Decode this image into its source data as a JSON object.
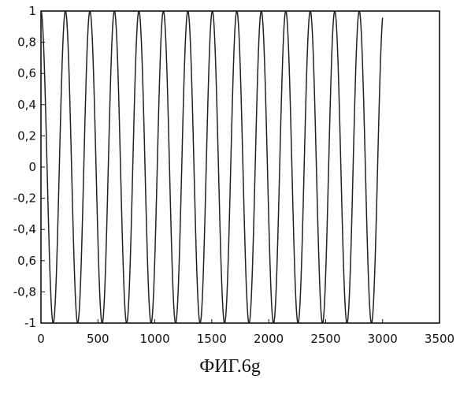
{
  "caption": "ФИГ.6g",
  "chart_data": {
    "type": "line",
    "title": "",
    "xlabel": "",
    "ylabel": "",
    "xlim": [
      0,
      3500
    ],
    "ylim": [
      -1,
      1
    ],
    "grid": false,
    "legend": "none",
    "line_color": "#222222",
    "signal": {
      "waveform": "cosine",
      "amplitude": 1,
      "period": 215,
      "x_start": 0,
      "x_end": 3000,
      "cycles": 14
    },
    "x_ticks": [
      {
        "value": 0,
        "label": "0"
      },
      {
        "value": 500,
        "label": "500"
      },
      {
        "value": 1000,
        "label": "1000"
      },
      {
        "value": 1500,
        "label": "1500"
      },
      {
        "value": 2000,
        "label": "2000"
      },
      {
        "value": 2500,
        "label": "2500"
      },
      {
        "value": 3000,
        "label": "3000"
      },
      {
        "value": 3500,
        "label": "3500"
      }
    ],
    "y_ticks": [
      {
        "value": 1,
        "label": "1"
      },
      {
        "value": 0.8,
        "label": "0,8"
      },
      {
        "value": 0.6,
        "label": "0,6"
      },
      {
        "value": 0.4,
        "label": "0,4"
      },
      {
        "value": 0.2,
        "label": "0,2"
      },
      {
        "value": 0,
        "label": "0"
      },
      {
        "value": -0.2,
        "label": "-0,2"
      },
      {
        "value": -0.4,
        "label": "-0,4"
      },
      {
        "value": -0.6,
        "label": "0,6"
      },
      {
        "value": -0.8,
        "label": "-0,8"
      },
      {
        "value": -1,
        "label": "-1"
      }
    ]
  }
}
